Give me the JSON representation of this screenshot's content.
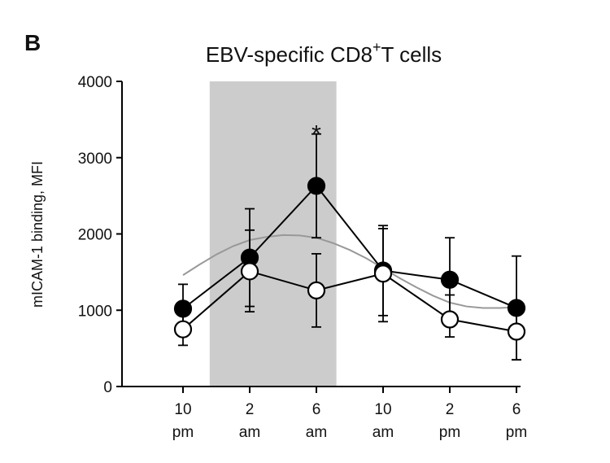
{
  "panel_label": "B",
  "chart_data": {
    "type": "line",
    "title": {
      "main": "EBV-specific CD8",
      "superscript": "+",
      "suffix": "T cells"
    },
    "xlabel": "",
    "ylabel": "mICAM-1 binding, MFI",
    "ylim": [
      0,
      4000
    ],
    "yticks": [
      0,
      1000,
      2000,
      3000,
      4000
    ],
    "grid": false,
    "categories": [
      {
        "hour": "10",
        "period": "pm"
      },
      {
        "hour": "2",
        "period": "am"
      },
      {
        "hour": "6",
        "period": "am"
      },
      {
        "hour": "10",
        "period": "am"
      },
      {
        "hour": "2",
        "period": "pm"
      },
      {
        "hour": "6",
        "period": "pm"
      }
    ],
    "shaded_region": {
      "from_category_index": 0.4,
      "to_category_index": 2.3,
      "color": "#cccccc"
    },
    "series": [
      {
        "marker": "filled-circle",
        "color": "#000000",
        "values": [
          1020,
          1690,
          2630,
          1520,
          1400,
          1030
        ],
        "error_upper": [
          1340,
          2330,
          3310,
          2110,
          1950,
          1710
        ],
        "error_lower": [
          700,
          1050,
          1950,
          930,
          850,
          350
        ]
      },
      {
        "marker": "open-circle",
        "color": "#000000",
        "values": [
          750,
          1510,
          1260,
          1480,
          880,
          720
        ],
        "error_upper": [
          1000,
          2050,
          1740,
          2070,
          1200,
          1060
        ],
        "error_lower": [
          540,
          980,
          780,
          850,
          650,
          350
        ]
      }
    ],
    "fit_curve": {
      "color": "#999999",
      "x": [
        0,
        0.25,
        0.5,
        0.75,
        1,
        1.25,
        1.5,
        1.75,
        2,
        2.25,
        2.5,
        2.75,
        3,
        3.25,
        3.5,
        3.75,
        4,
        4.25,
        4.5,
        4.75,
        5
      ],
      "y": [
        1460,
        1600,
        1730,
        1840,
        1920,
        1960,
        1985,
        1980,
        1950,
        1880,
        1790,
        1680,
        1550,
        1420,
        1300,
        1190,
        1100,
        1050,
        1030,
        1030,
        1040
      ]
    },
    "annotations": [
      {
        "text": "*",
        "category_index": 2,
        "value": 3400
      }
    ]
  }
}
